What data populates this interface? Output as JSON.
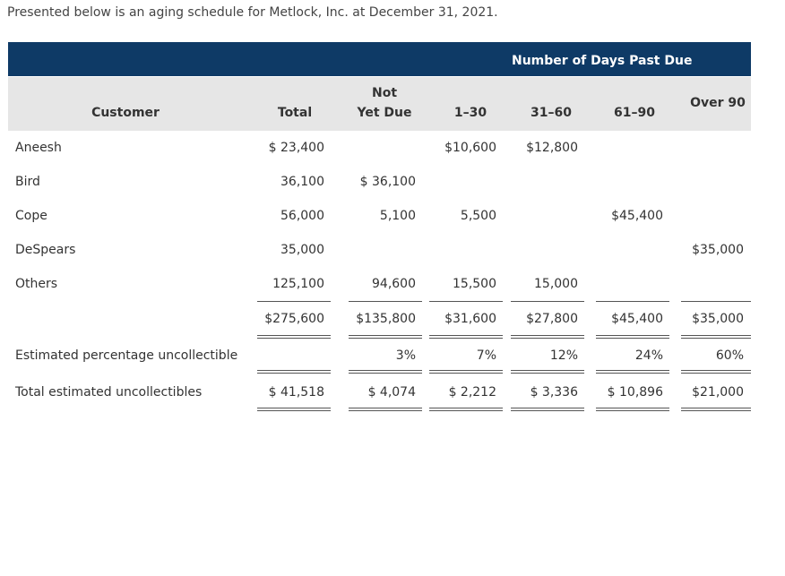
{
  "intro_text": "Presented below is an aging schedule for Metlock, Inc. at December 31, 2021.",
  "header": {
    "group_title": "Number of Days Past Due",
    "customer": "Customer",
    "total": "Total",
    "not_yet_due_1": "Not",
    "not_yet_due_2": "Yet Due",
    "d1_30": "1–30",
    "d31_60": "31–60",
    "d61_90": "61–90",
    "over90": "Over 90"
  },
  "rows": [
    {
      "name": "Aneesh",
      "total": "$ 23,400",
      "nyd": "",
      "d1": "$10,600",
      "d31": "$12,800",
      "d61": "",
      "o90": ""
    },
    {
      "name": "Bird",
      "total": "36,100",
      "nyd": "$ 36,100",
      "d1": "",
      "d31": "",
      "d61": "",
      "o90": ""
    },
    {
      "name": "Cope",
      "total": "56,000",
      "nyd": "5,100",
      "d1": "5,500",
      "d31": "",
      "d61": "$45,400",
      "o90": ""
    },
    {
      "name": "DeSpears",
      "total": "35,000",
      "nyd": "",
      "d1": "",
      "d31": "",
      "d61": "",
      "o90": "$35,000"
    },
    {
      "name": "Others",
      "total": "125,100",
      "nyd": "94,600",
      "d1": "15,500",
      "d31": "15,000",
      "d61": "",
      "o90": ""
    }
  ],
  "totals": {
    "total": "$275,600",
    "nyd": "$135,800",
    "d1": "$31,600",
    "d31": "$27,800",
    "d61": "$45,400",
    "o90": "$35,000"
  },
  "percent": {
    "label": "Estimated percentage uncollectible",
    "nyd": "3%",
    "d1": "7%",
    "d31": "12%",
    "d61": "24%",
    "o90": "60%"
  },
  "estimated": {
    "label": "Total estimated uncollectibles",
    "total": "$ 41,518",
    "nyd": "$ 4,074",
    "d1": "$ 2,212",
    "d31": "$ 3,336",
    "d61": "$ 10,896",
    "o90": "$21,000"
  }
}
